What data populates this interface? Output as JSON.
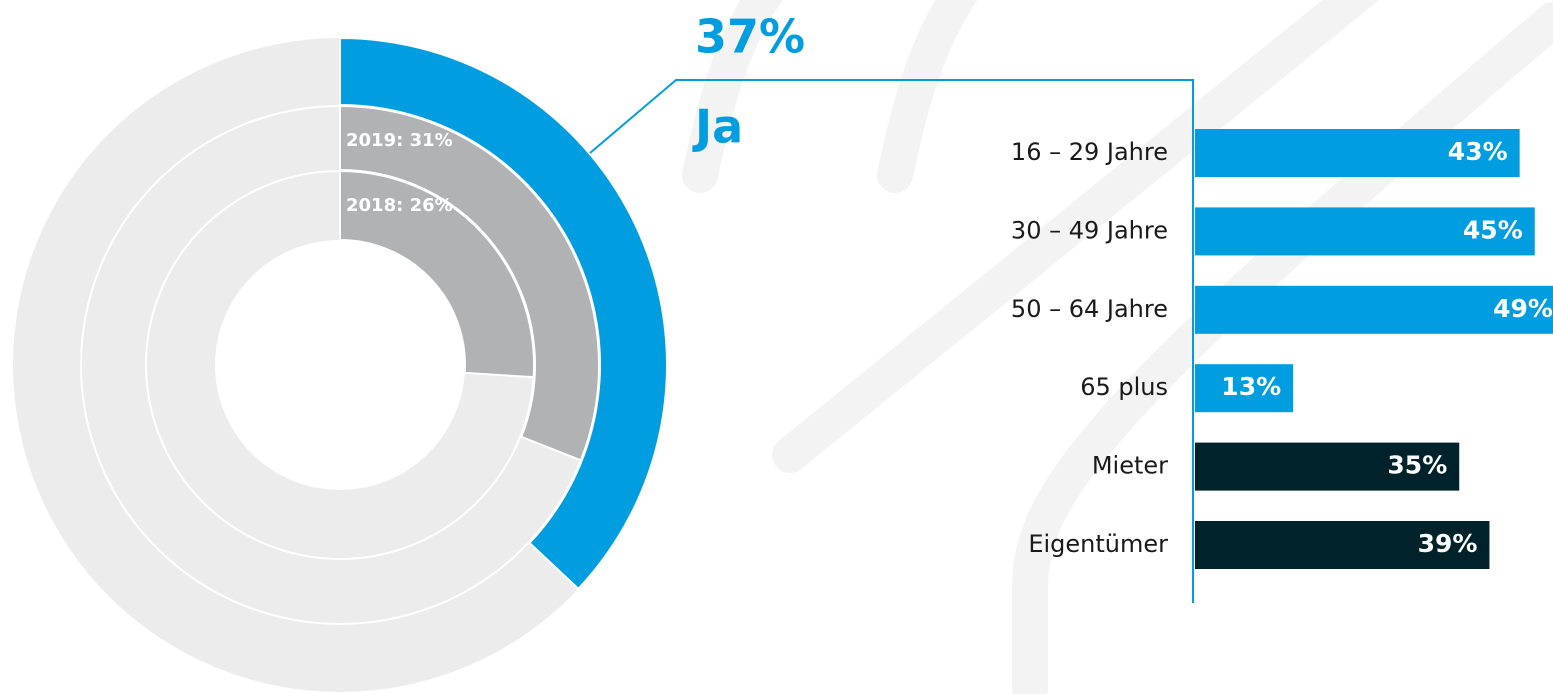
{
  "chart_data": [
    {
      "type": "pie",
      "series": [
        {
          "name": "Ja",
          "value": 37,
          "value_label": "37%",
          "color": "#009ee0"
        },
        {
          "value": 31,
          "value_label": "2019: 31%",
          "color": "#b1b2b4"
        },
        {
          "value": 26,
          "value_label": "2018: 26%",
          "color": "#b1b2b4"
        }
      ],
      "rest_color": "#ececec"
    },
    {
      "type": "bar",
      "categories": [
        "16 – 29 Jahre",
        "30 – 49 Jahre",
        "50 – 64 Jahre",
        "65 plus",
        "Mieter",
        "Eigentümer"
      ],
      "values": [
        43,
        45,
        49,
        13,
        35,
        39
      ],
      "value_labels": [
        "43%",
        "45%",
        "49%",
        "13%",
        "35%",
        "39%"
      ],
      "colors": [
        "#009ee0",
        "#009ee0",
        "#009ee0",
        "#009ee0",
        "#00222b",
        "#00222b"
      ]
    }
  ]
}
